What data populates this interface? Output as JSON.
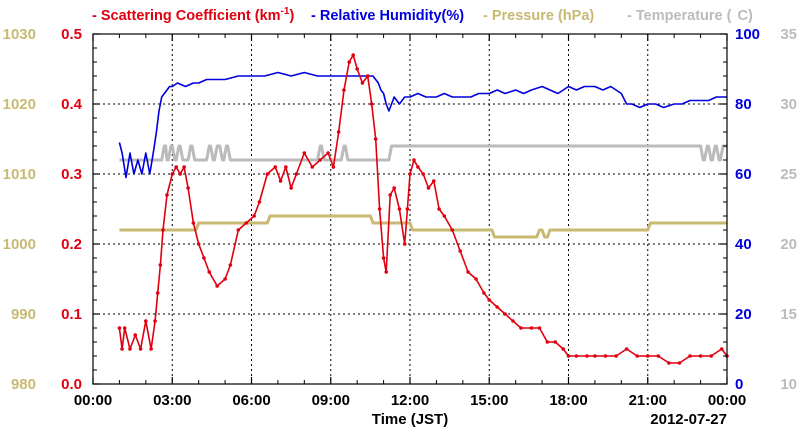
{
  "chart_data": {
    "type": "line",
    "xlabel": "Time (JST)",
    "date_label": "2012-07-27",
    "x_tick_labels": [
      "00:00",
      "03:00",
      "06:00",
      "09:00",
      "12:00",
      "15:00",
      "18:00",
      "21:00",
      "00:00"
    ],
    "x_unit": "hours since 00:00",
    "xlim": [
      0,
      24
    ],
    "grid": true,
    "legend_position": "top",
    "axes": {
      "scattering": {
        "ylim": [
          0,
          0.5
        ],
        "ticks": [
          "0.0",
          "0.1",
          "0.2",
          "0.3",
          "0.4",
          "0.5"
        ],
        "color": "#e0000f"
      },
      "pressure": {
        "ylim": [
          980,
          1030
        ],
        "ticks": [
          "980",
          "990",
          "1000",
          "1010",
          "1020",
          "1030"
        ],
        "color": "#c8b973"
      },
      "humidity": {
        "ylim": [
          0,
          100
        ],
        "ticks": [
          "0",
          "20",
          "40",
          "60",
          "80",
          "100"
        ],
        "color": "#0000dd"
      },
      "temperature": {
        "ylim": [
          10,
          35
        ],
        "ticks": [
          "10",
          "15",
          "20",
          "25",
          "30",
          "35"
        ],
        "color": "#bbbbbb"
      }
    },
    "series": [
      {
        "name": "Scattering Coefficient (km",
        "name_sup": "-1",
        "name_end": ")",
        "axis": "scattering",
        "color": "#e0000f",
        "x": [
          1.0,
          1.1,
          1.2,
          1.4,
          1.6,
          1.8,
          2.0,
          2.2,
          2.35,
          2.45,
          2.55,
          2.65,
          2.8,
          3.0,
          3.15,
          3.3,
          3.45,
          3.6,
          3.8,
          4.0,
          4.2,
          4.4,
          4.7,
          5.0,
          5.2,
          5.5,
          5.8,
          6.1,
          6.3,
          6.6,
          6.9,
          7.1,
          7.3,
          7.5,
          7.7,
          8.0,
          8.3,
          8.6,
          8.9,
          9.1,
          9.3,
          9.5,
          9.7,
          9.85,
          10.0,
          10.2,
          10.4,
          10.55,
          10.7,
          10.85,
          11.0,
          11.1,
          11.25,
          11.4,
          11.6,
          11.8,
          11.9,
          12.0,
          12.15,
          12.3,
          12.5,
          12.7,
          12.9,
          13.1,
          13.3,
          13.6,
          13.9,
          14.2,
          14.5,
          14.8,
          15.0,
          15.3,
          15.6,
          15.9,
          16.2,
          16.6,
          16.9,
          17.2,
          17.5,
          17.8,
          18.0,
          18.3,
          18.7,
          19.0,
          19.4,
          19.8,
          20.2,
          20.6,
          21.0,
          21.4,
          21.8,
          22.2,
          22.6,
          23.0,
          23.4,
          23.8,
          24.0
        ],
        "y": [
          0.08,
          0.05,
          0.08,
          0.05,
          0.07,
          0.05,
          0.09,
          0.05,
          0.09,
          0.13,
          0.17,
          0.22,
          0.27,
          0.3,
          0.31,
          0.3,
          0.31,
          0.28,
          0.23,
          0.2,
          0.18,
          0.16,
          0.14,
          0.15,
          0.17,
          0.22,
          0.23,
          0.24,
          0.26,
          0.3,
          0.31,
          0.29,
          0.31,
          0.28,
          0.3,
          0.33,
          0.31,
          0.32,
          0.33,
          0.31,
          0.36,
          0.42,
          0.46,
          0.47,
          0.45,
          0.43,
          0.44,
          0.4,
          0.35,
          0.25,
          0.18,
          0.16,
          0.27,
          0.28,
          0.25,
          0.2,
          0.25,
          0.3,
          0.32,
          0.31,
          0.3,
          0.28,
          0.29,
          0.25,
          0.24,
          0.22,
          0.19,
          0.16,
          0.15,
          0.13,
          0.12,
          0.11,
          0.1,
          0.09,
          0.08,
          0.08,
          0.08,
          0.06,
          0.06,
          0.05,
          0.04,
          0.04,
          0.04,
          0.04,
          0.04,
          0.04,
          0.05,
          0.04,
          0.04,
          0.04,
          0.03,
          0.03,
          0.04,
          0.04,
          0.04,
          0.05,
          0.04
        ]
      },
      {
        "name": "Relative Humidity(%)",
        "axis": "humidity",
        "color": "#0000dd",
        "x": [
          1.0,
          1.1,
          1.25,
          1.4,
          1.55,
          1.7,
          1.85,
          2.0,
          2.15,
          2.3,
          2.4,
          2.5,
          2.6,
          2.7,
          2.8,
          2.9,
          3.0,
          3.2,
          3.5,
          3.8,
          4.0,
          4.3,
          4.6,
          5.0,
          5.5,
          6.0,
          6.5,
          7.0,
          7.5,
          8.0,
          8.5,
          9.0,
          9.5,
          10.0,
          10.3,
          10.6,
          10.8,
          10.9,
          11.0,
          11.1,
          11.2,
          11.4,
          11.6,
          11.8,
          12.0,
          12.3,
          12.6,
          13.0,
          13.3,
          13.6,
          14.0,
          14.3,
          14.6,
          15.0,
          15.3,
          15.6,
          16.0,
          16.3,
          16.6,
          17.0,
          17.3,
          17.6,
          18.0,
          18.3,
          18.6,
          19.0,
          19.3,
          19.6,
          20.0,
          20.2,
          20.4,
          20.7,
          21.0,
          21.3,
          21.6,
          22.0,
          22.3,
          22.6,
          23.0,
          23.3,
          23.6,
          24.0
        ],
        "y": [
          69,
          66,
          59,
          66,
          60,
          64,
          60,
          66,
          60,
          67,
          72,
          78,
          82,
          83,
          84,
          85,
          85,
          86,
          85,
          86,
          86,
          87,
          87,
          87,
          88,
          88,
          88,
          89,
          88,
          89,
          88,
          88,
          88,
          88,
          88,
          88,
          86,
          84,
          83,
          80,
          78,
          82,
          80,
          82,
          82,
          83,
          82,
          82,
          83,
          82,
          82,
          82,
          83,
          83,
          84,
          83,
          84,
          83,
          84,
          85,
          84,
          83,
          85,
          84,
          85,
          85,
          84,
          85,
          83,
          80,
          80,
          79,
          80,
          80,
          79,
          80,
          80,
          81,
          81,
          81,
          82,
          82
        ]
      },
      {
        "name": "Pressure (hPa)",
        "axis": "pressure",
        "color": "#c8b973",
        "x": [
          1.0,
          3.9,
          4.0,
          6.6,
          6.7,
          10.5,
          10.6,
          12.0,
          12.1,
          15.1,
          15.2,
          16.8,
          16.9,
          17.0,
          17.1,
          17.2,
          17.3,
          17.8,
          17.9,
          21.0,
          21.1,
          24.0
        ],
        "y": [
          1002,
          1002,
          1003,
          1003,
          1004,
          1004,
          1003,
          1003,
          1002,
          1002,
          1001,
          1001,
          1002,
          1002,
          1001,
          1001,
          1002,
          1002,
          1002,
          1002,
          1003,
          1003
        ]
      },
      {
        "name": "Temperature (",
        "name_end": "C)",
        "axis": "temperature",
        "color": "#bbbbbb",
        "x": [
          1.0,
          2.6,
          2.7,
          2.75,
          2.8,
          2.85,
          2.95,
          3.0,
          3.1,
          3.15,
          3.25,
          3.3,
          3.4,
          3.6,
          3.7,
          3.75,
          3.85,
          3.9,
          4.0,
          4.3,
          4.4,
          4.45,
          4.55,
          4.6,
          4.7,
          4.8,
          4.9,
          4.95,
          5.05,
          5.1,
          5.2,
          8.5,
          8.6,
          8.65,
          8.75,
          8.8,
          9.0,
          9.4,
          9.5,
          9.55,
          9.65,
          9.7,
          11.2,
          11.3,
          23.0,
          23.1,
          23.15,
          23.25,
          23.3,
          23.4,
          23.45,
          23.55,
          23.6,
          23.7,
          23.75,
          23.85,
          23.9,
          24.0
        ],
        "y": [
          26,
          26,
          27,
          27,
          26,
          26,
          27,
          27,
          26,
          26,
          27,
          27,
          26,
          26,
          27,
          27,
          26,
          26,
          26,
          26,
          27,
          27,
          26,
          26,
          27,
          27,
          26,
          26,
          27,
          27,
          26,
          26,
          27,
          27,
          26,
          26,
          26,
          26,
          27,
          27,
          26,
          26,
          26,
          27,
          27,
          26,
          26,
          27,
          27,
          26,
          26,
          27,
          27,
          26,
          26,
          27,
          27,
          27
        ]
      }
    ]
  }
}
